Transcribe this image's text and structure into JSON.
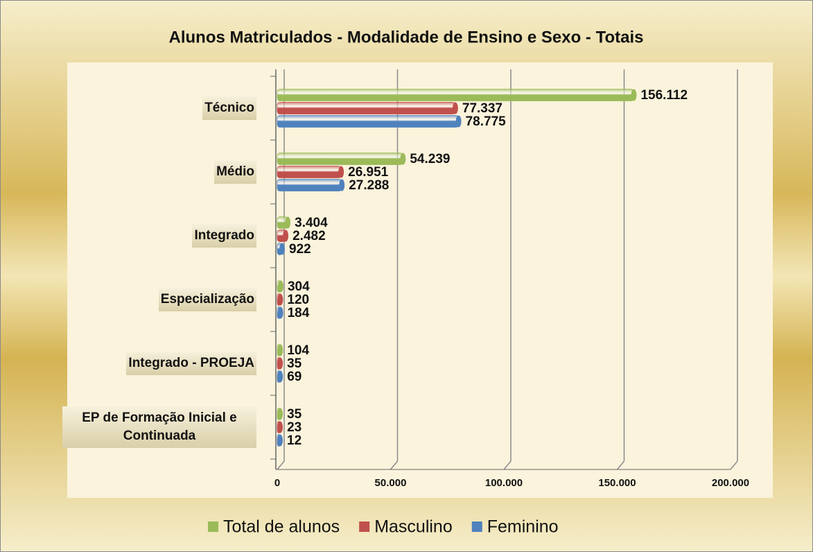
{
  "chart_data": {
    "type": "bar",
    "orientation": "horizontal",
    "title": "Alunos Matriculados - Modalidade de Ensino e Sexo - Totais",
    "categories": [
      "Técnico",
      "Médio",
      "Integrado",
      "Especialização",
      "Integrado - PROEJA",
      "EP de Formação Inicial e Continuada"
    ],
    "series": [
      {
        "name": "Total de alunos",
        "color": "#9bbb59",
        "values": [
          156112,
          54239,
          3404,
          304,
          104,
          35
        ],
        "value_labels": [
          "156.112",
          "54.239",
          "3.404",
          "304",
          "104",
          "35"
        ]
      },
      {
        "name": "Masculino",
        "color": "#c0504d",
        "values": [
          77337,
          26951,
          2482,
          120,
          35,
          23
        ],
        "value_labels": [
          "77.337",
          "26.951",
          "2.482",
          "120",
          "35",
          "23"
        ]
      },
      {
        "name": "Feminino",
        "color": "#4f81bd",
        "values": [
          78775,
          27288,
          922,
          184,
          69,
          12
        ],
        "value_labels": [
          "78.775",
          "27.288",
          "922",
          "184",
          "69",
          "12"
        ]
      }
    ],
    "xlim": [
      0,
      200000
    ],
    "xticks": [
      0,
      {
        "value": 50000,
        "label": "50.000"
      },
      {
        "value": 100000,
        "label": "100.000"
      },
      {
        "value": 150000,
        "label": "150.000"
      },
      {
        "value": 200000,
        "label": "200.000"
      }
    ],
    "grid": true,
    "legend": "bottom"
  }
}
